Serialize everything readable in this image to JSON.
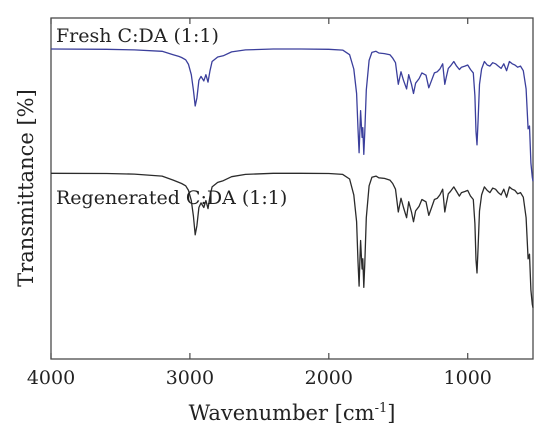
{
  "chart_data": {
    "type": "line",
    "xlabel": "Wavenumber [cm",
    "xlabel_sup": "-1",
    "xlabel_suffix": "]",
    "ylabel": "Transmittance [%]",
    "x_tick_labels": [
      "4000",
      "3000",
      "2000",
      "1000"
    ],
    "xlim": [
      4000,
      530
    ],
    "x_reversed": true,
    "y_ticks_shown": false,
    "grid": false,
    "legend": "none",
    "series": [
      {
        "name": "Fresh C:DA (1:1)",
        "color": "#3b3f9c",
        "offset": 0.0,
        "points": [
          [
            4000,
            0.0
          ],
          [
            3600,
            0.005
          ],
          [
            3400,
            0.015
          ],
          [
            3200,
            0.04
          ],
          [
            3120,
            0.1
          ],
          [
            3080,
            0.13
          ],
          [
            3060,
            0.15
          ],
          [
            3030,
            0.19
          ],
          [
            3010,
            0.27
          ],
          [
            2990,
            0.45
          ],
          [
            2975,
            0.72
          ],
          [
            2962,
            1.0
          ],
          [
            2950,
            0.86
          ],
          [
            2935,
            0.55
          ],
          [
            2920,
            0.48
          ],
          [
            2900,
            0.56
          ],
          [
            2885,
            0.45
          ],
          [
            2870,
            0.58
          ],
          [
            2855,
            0.38
          ],
          [
            2840,
            0.22
          ],
          [
            2800,
            0.14
          ],
          [
            2760,
            0.12
          ],
          [
            2700,
            0.05
          ],
          [
            2600,
            0.015
          ],
          [
            2400,
            0.0
          ],
          [
            2200,
            0.0
          ],
          [
            2000,
            0.005
          ],
          [
            1900,
            0.02
          ],
          [
            1850,
            0.1
          ],
          [
            1820,
            0.35
          ],
          [
            1800,
            0.78
          ],
          [
            1790,
            1.4
          ],
          [
            1782,
            1.82
          ],
          [
            1776,
            1.42
          ],
          [
            1771,
            1.08
          ],
          [
            1765,
            1.38
          ],
          [
            1760,
            1.55
          ],
          [
            1755,
            1.38
          ],
          [
            1748,
            1.85
          ],
          [
            1741,
            1.45
          ],
          [
            1730,
            0.72
          ],
          [
            1710,
            0.2
          ],
          [
            1690,
            0.06
          ],
          [
            1660,
            0.04
          ],
          [
            1640,
            0.07
          ],
          [
            1600,
            0.08
          ],
          [
            1560,
            0.1
          ],
          [
            1540,
            0.16
          ],
          [
            1520,
            0.24
          ],
          [
            1500,
            0.62
          ],
          [
            1480,
            0.4
          ],
          [
            1462,
            0.55
          ],
          [
            1440,
            0.7
          ],
          [
            1425,
            0.45
          ],
          [
            1405,
            0.62
          ],
          [
            1390,
            0.78
          ],
          [
            1375,
            0.6
          ],
          [
            1350,
            0.52
          ],
          [
            1330,
            0.42
          ],
          [
            1300,
            0.46
          ],
          [
            1280,
            0.68
          ],
          [
            1260,
            0.55
          ],
          [
            1240,
            0.42
          ],
          [
            1220,
            0.4
          ],
          [
            1200,
            0.35
          ],
          [
            1180,
            0.26
          ],
          [
            1165,
            0.62
          ],
          [
            1155,
            0.5
          ],
          [
            1140,
            0.34
          ],
          [
            1125,
            0.3
          ],
          [
            1100,
            0.22
          ],
          [
            1080,
            0.3
          ],
          [
            1060,
            0.36
          ],
          [
            1045,
            0.32
          ],
          [
            1020,
            0.3
          ],
          [
            1000,
            0.28
          ],
          [
            980,
            0.36
          ],
          [
            960,
            0.42
          ],
          [
            948,
            0.82
          ],
          [
            940,
            1.45
          ],
          [
            933,
            1.68
          ],
          [
            925,
            1.25
          ],
          [
            915,
            0.62
          ],
          [
            900,
            0.35
          ],
          [
            880,
            0.22
          ],
          [
            860,
            0.28
          ],
          [
            840,
            0.3
          ],
          [
            820,
            0.24
          ],
          [
            800,
            0.26
          ],
          [
            780,
            0.3
          ],
          [
            760,
            0.34
          ],
          [
            740,
            0.26
          ],
          [
            720,
            0.38
          ],
          [
            700,
            0.22
          ],
          [
            680,
            0.26
          ],
          [
            660,
            0.28
          ],
          [
            640,
            0.32
          ],
          [
            620,
            0.3
          ],
          [
            600,
            0.38
          ],
          [
            580,
            0.7
          ],
          [
            565,
            1.4
          ],
          [
            555,
            1.35
          ],
          [
            545,
            2.0
          ],
          [
            535,
            2.25
          ],
          [
            530,
            2.32
          ]
        ]
      },
      {
        "name": "Regenerated C:DA (1:1)",
        "color": "#2b2b2b",
        "offset": -2.18,
        "points": [
          [
            4000,
            0.0
          ],
          [
            3600,
            0.005
          ],
          [
            3400,
            0.015
          ],
          [
            3200,
            0.05
          ],
          [
            3120,
            0.12
          ],
          [
            3080,
            0.16
          ],
          [
            3060,
            0.18
          ],
          [
            3030,
            0.22
          ],
          [
            3010,
            0.3
          ],
          [
            2990,
            0.48
          ],
          [
            2975,
            0.75
          ],
          [
            2962,
            1.08
          ],
          [
            2950,
            0.92
          ],
          [
            2935,
            0.6
          ],
          [
            2920,
            0.52
          ],
          [
            2900,
            0.6
          ],
          [
            2885,
            0.48
          ],
          [
            2870,
            0.62
          ],
          [
            2855,
            0.4
          ],
          [
            2840,
            0.24
          ],
          [
            2800,
            0.16
          ],
          [
            2760,
            0.13
          ],
          [
            2700,
            0.06
          ],
          [
            2600,
            0.02
          ],
          [
            2400,
            0.0
          ],
          [
            2200,
            0.0
          ],
          [
            2000,
            0.005
          ],
          [
            1900,
            0.02
          ],
          [
            1850,
            0.1
          ],
          [
            1820,
            0.38
          ],
          [
            1800,
            0.85
          ],
          [
            1790,
            1.55
          ],
          [
            1782,
            1.98
          ],
          [
            1776,
            1.52
          ],
          [
            1771,
            1.18
          ],
          [
            1765,
            1.5
          ],
          [
            1760,
            1.68
          ],
          [
            1755,
            1.5
          ],
          [
            1748,
            2.0
          ],
          [
            1741,
            1.58
          ],
          [
            1730,
            0.78
          ],
          [
            1710,
            0.22
          ],
          [
            1690,
            0.07
          ],
          [
            1660,
            0.05
          ],
          [
            1640,
            0.08
          ],
          [
            1600,
            0.09
          ],
          [
            1560,
            0.12
          ],
          [
            1540,
            0.18
          ],
          [
            1520,
            0.28
          ],
          [
            1500,
            0.68
          ],
          [
            1480,
            0.44
          ],
          [
            1462,
            0.6
          ],
          [
            1440,
            0.78
          ],
          [
            1425,
            0.5
          ],
          [
            1405,
            0.68
          ],
          [
            1390,
            0.85
          ],
          [
            1375,
            0.66
          ],
          [
            1350,
            0.58
          ],
          [
            1330,
            0.46
          ],
          [
            1300,
            0.5
          ],
          [
            1280,
            0.74
          ],
          [
            1260,
            0.6
          ],
          [
            1240,
            0.46
          ],
          [
            1220,
            0.44
          ],
          [
            1200,
            0.38
          ],
          [
            1180,
            0.28
          ],
          [
            1165,
            0.68
          ],
          [
            1155,
            0.54
          ],
          [
            1140,
            0.36
          ],
          [
            1125,
            0.32
          ],
          [
            1100,
            0.24
          ],
          [
            1080,
            0.32
          ],
          [
            1060,
            0.4
          ],
          [
            1045,
            0.34
          ],
          [
            1020,
            0.32
          ],
          [
            1000,
            0.3
          ],
          [
            980,
            0.4
          ],
          [
            960,
            0.46
          ],
          [
            948,
            0.88
          ],
          [
            940,
            1.52
          ],
          [
            933,
            1.75
          ],
          [
            925,
            1.3
          ],
          [
            915,
            0.66
          ],
          [
            900,
            0.38
          ],
          [
            880,
            0.24
          ],
          [
            860,
            0.3
          ],
          [
            840,
            0.34
          ],
          [
            820,
            0.26
          ],
          [
            800,
            0.28
          ],
          [
            780,
            0.34
          ],
          [
            760,
            0.38
          ],
          [
            740,
            0.28
          ],
          [
            720,
            0.42
          ],
          [
            700,
            0.24
          ],
          [
            680,
            0.28
          ],
          [
            660,
            0.3
          ],
          [
            640,
            0.36
          ],
          [
            620,
            0.34
          ],
          [
            600,
            0.42
          ],
          [
            580,
            0.78
          ],
          [
            565,
            1.5
          ],
          [
            555,
            1.42
          ],
          [
            545,
            2.05
          ],
          [
            535,
            2.3
          ],
          [
            530,
            2.36
          ]
        ]
      }
    ]
  }
}
